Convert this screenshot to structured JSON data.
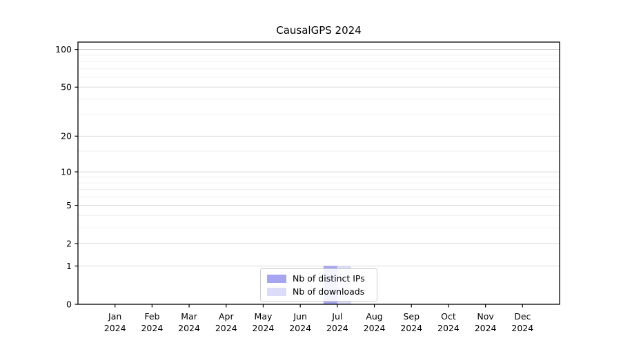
{
  "chart_data": {
    "type": "bar",
    "title": "CausalGPS 2024",
    "categories": [
      "Jan",
      "Feb",
      "Mar",
      "Apr",
      "May",
      "Jun",
      "Jul",
      "Aug",
      "Sep",
      "Oct",
      "Nov",
      "Dec"
    ],
    "category_year": "2024",
    "series": [
      {
        "name": "Nb of distinct IPs",
        "color": "#a5a5f0",
        "values": [
          0,
          0,
          0,
          0,
          0,
          0,
          1,
          0,
          0,
          0,
          0,
          0
        ]
      },
      {
        "name": "Nb of downloads",
        "color": "#dcdcf8",
        "values": [
          0,
          0,
          0,
          0,
          0,
          0,
          1,
          0,
          0,
          0,
          0,
          0
        ]
      }
    ],
    "xlabel": "",
    "ylabel": "",
    "yaxis": {
      "scale": "log1p",
      "tick_labels": [
        "0",
        "1",
        "2",
        "5",
        "10",
        "20",
        "50",
        "100"
      ],
      "tick_values": [
        0,
        1,
        2,
        5,
        10,
        20,
        50,
        100
      ],
      "minor_gridline_values": [
        3,
        4,
        6,
        7,
        8,
        9,
        15,
        30,
        40,
        60,
        70,
        80,
        90
      ],
      "ylim": [
        0,
        115
      ]
    },
    "legend_position": "lower center",
    "grid": "on",
    "style": {
      "background": "#ffffff",
      "axis_color": "#000000",
      "major_grid_color": "#d9d9d9",
      "top_grid_color": "#bfbfbf",
      "minor_grid_color": "#ececec",
      "text_color": "#000000"
    }
  }
}
